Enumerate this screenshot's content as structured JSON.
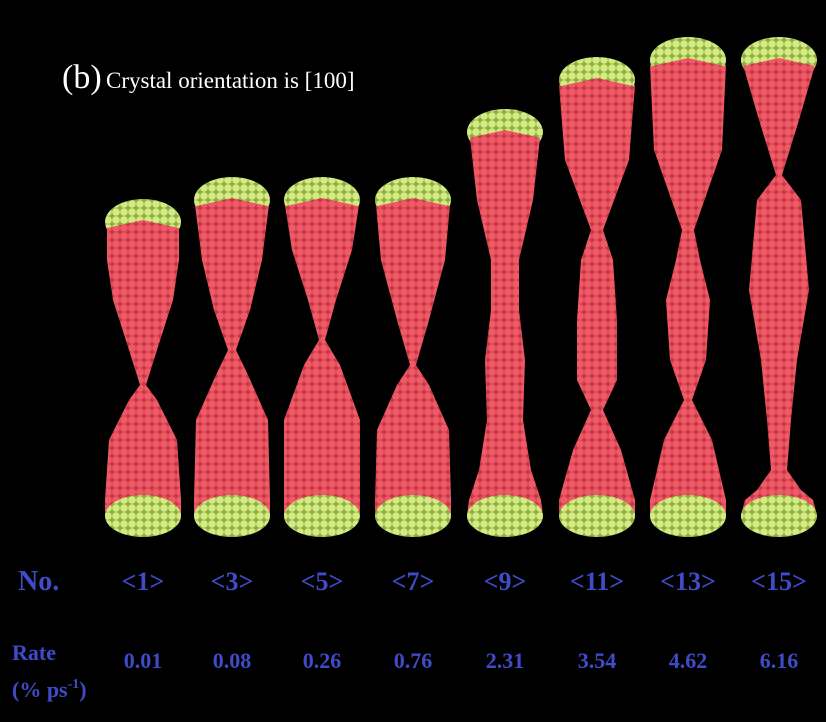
{
  "panel_label": "(b)",
  "title": "Crystal orientation is [100]",
  "number_label": "No.",
  "numbers": [
    "<1>",
    "<3>",
    "<5>",
    "<7>",
    "<9>",
    "<11>",
    "<13>",
    "<15>"
  ],
  "rate_label": "Rate",
  "rate_unit": {
    "prefix": "(% ps",
    "superscript": "-1",
    "suffix": ")"
  },
  "rates": [
    "0.01",
    "0.08",
    "0.26",
    "0.76",
    "2.31",
    "3.54",
    "4.62",
    "6.16"
  ]
}
